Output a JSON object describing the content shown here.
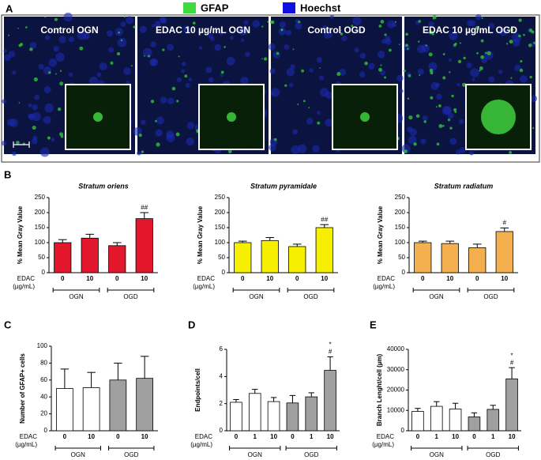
{
  "panel_a": {
    "letter": "A",
    "legend": [
      {
        "name": "GFAP",
        "color": "#3ddc3d"
      },
      {
        "name": "Hoechst",
        "color": "#1010e0"
      }
    ],
    "images": [
      "Control OGN",
      "EDAC 10 µg/mL OGN",
      "Control OGD",
      "EDAC 10 µg/mL OGD"
    ]
  },
  "panel_b": {
    "letter": "B"
  },
  "chart_data": [
    {
      "type": "bar",
      "letter": null,
      "title": "Stratum oriens",
      "ylabel": "% Mean Gray Value",
      "xlabel": "EDAC",
      "xlabel_unit": "(µg/mL)",
      "categories": [
        "0",
        "10",
        "0",
        "10"
      ],
      "values": [
        100,
        115,
        90,
        180
      ],
      "errors": [
        10,
        13,
        10,
        20
      ],
      "colors": [
        "#e3172c",
        "#e3172c",
        "#e3172c",
        "#e3172c"
      ],
      "annotations": [
        null,
        null,
        null,
        [
          "##"
        ]
      ],
      "groups": [
        "OGN",
        "OGD"
      ],
      "ylim": [
        0,
        250
      ],
      "yticks": [
        0,
        50,
        100,
        150,
        200,
        250
      ]
    },
    {
      "type": "bar",
      "letter": null,
      "title": "Stratum pyramidale",
      "ylabel": "% Mean Gray Value",
      "xlabel": "EDAC",
      "xlabel_unit": "(µg/mL)",
      "categories": [
        "0",
        "10",
        "0",
        "10"
      ],
      "values": [
        100,
        107,
        87,
        150
      ],
      "errors": [
        5,
        10,
        8,
        10
      ],
      "colors": [
        "#f6f000",
        "#f6f000",
        "#f6f000",
        "#f6f000"
      ],
      "annotations": [
        null,
        null,
        null,
        [
          "##"
        ]
      ],
      "groups": [
        "OGN",
        "OGD"
      ],
      "ylim": [
        0,
        250
      ],
      "yticks": [
        0,
        50,
        100,
        150,
        200,
        250
      ]
    },
    {
      "type": "bar",
      "letter": null,
      "title": "Stratum radiatum",
      "ylabel": "% Mean Gray Value",
      "xlabel": "EDAC",
      "xlabel_unit": "(µg/mL)",
      "categories": [
        "0",
        "10",
        "0",
        "10"
      ],
      "values": [
        100,
        97,
        83,
        137
      ],
      "errors": [
        5,
        8,
        12,
        12
      ],
      "colors": [
        "#f4b04e",
        "#f4b04e",
        "#f4b04e",
        "#f4b04e"
      ],
      "annotations": [
        null,
        null,
        null,
        [
          "#"
        ]
      ],
      "groups": [
        "OGN",
        "OGD"
      ],
      "ylim": [
        0,
        250
      ],
      "yticks": [
        0,
        50,
        100,
        150,
        200,
        250
      ]
    },
    {
      "type": "bar",
      "letter": "C",
      "title": null,
      "ylabel": "Number of GFAP+ cells",
      "xlabel": "EDAC",
      "xlabel_unit": "(µg/mL)",
      "categories": [
        "0",
        "10",
        "0",
        "10"
      ],
      "values": [
        50,
        51,
        60,
        62
      ],
      "errors": [
        23,
        18,
        20,
        26
      ],
      "colors": [
        "#ffffff",
        "#ffffff",
        "#a0a0a0",
        "#a0a0a0"
      ],
      "annotations": [
        null,
        null,
        null,
        null
      ],
      "groups": [
        "OGN",
        "OGD"
      ],
      "ylim": [
        0,
        100
      ],
      "yticks": [
        0,
        20,
        40,
        60,
        80,
        100
      ]
    },
    {
      "type": "bar",
      "letter": "D",
      "title": null,
      "ylabel": "Endpoints/cell",
      "xlabel": "EDAC",
      "xlabel_unit": "(µg/mL)",
      "categories": [
        "0",
        "1",
        "10",
        "0",
        "1",
        "10"
      ],
      "values": [
        2.1,
        2.75,
        2.15,
        2.05,
        2.5,
        4.45
      ],
      "errors": [
        0.2,
        0.3,
        0.3,
        0.55,
        0.3,
        1.0
      ],
      "colors": [
        "#ffffff",
        "#ffffff",
        "#ffffff",
        "#a0a0a0",
        "#a0a0a0",
        "#a0a0a0"
      ],
      "annotations": [
        null,
        null,
        null,
        null,
        null,
        [
          "*",
          "#"
        ]
      ],
      "groups": [
        "OGN",
        "OGD"
      ],
      "ylim": [
        0,
        6
      ],
      "yticks": [
        0,
        2,
        4,
        6
      ]
    },
    {
      "type": "bar",
      "letter": "E",
      "title": null,
      "ylabel": "Branch Lenght/cell (µm)",
      "xlabel": "EDAC",
      "xlabel_unit": "(µg/mL)",
      "categories": [
        "0",
        "1",
        "10",
        "0",
        "1",
        "10"
      ],
      "values": [
        9500,
        12000,
        10700,
        6800,
        10500,
        25500
      ],
      "errors": [
        1500,
        2300,
        2800,
        2000,
        2000,
        5500
      ],
      "colors": [
        "#ffffff",
        "#ffffff",
        "#ffffff",
        "#a0a0a0",
        "#a0a0a0",
        "#a0a0a0"
      ],
      "annotations": [
        null,
        null,
        null,
        null,
        null,
        [
          "*",
          "#"
        ]
      ],
      "groups": [
        "OGN",
        "OGD"
      ],
      "ylim": [
        0,
        40000
      ],
      "yticks": [
        0,
        10000,
        20000,
        30000,
        40000
      ]
    }
  ]
}
